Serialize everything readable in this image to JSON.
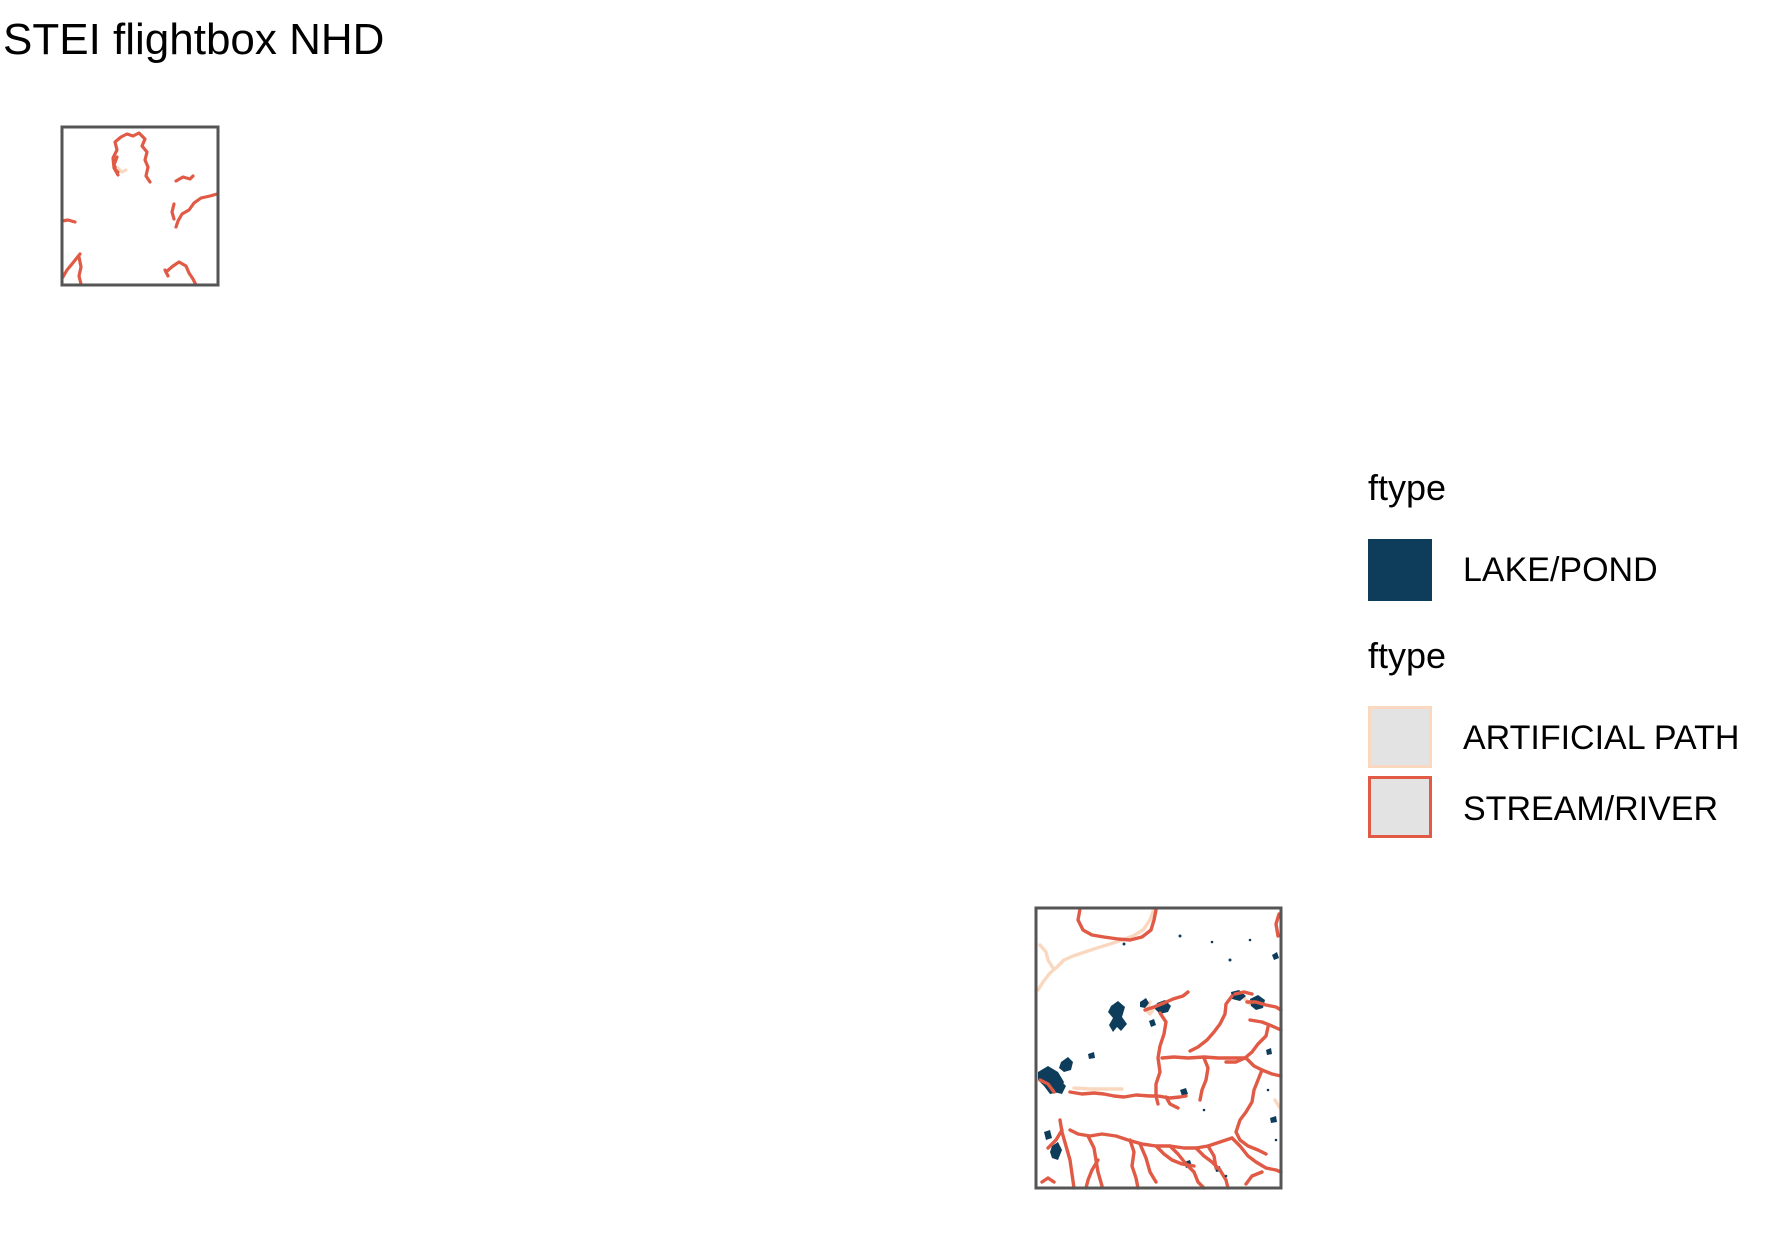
{
  "title": "STEI flightbox NHD",
  "legend": {
    "polygon_title": "ftype",
    "polygon_items": [
      {
        "label": "LAKE/POND",
        "fill": "#0e3d5c"
      }
    ],
    "line_title": "ftype",
    "line_items": [
      {
        "label": "ARTIFICIAL PATH",
        "fill": "#e3e3e3",
        "stroke": "#fad8c0"
      },
      {
        "label": "STREAM/RIVER",
        "fill": "#e3e3e3",
        "stroke": "#e05a45"
      }
    ]
  },
  "colors": {
    "lake_pond": "#0e3d5c",
    "artificial_path": "#fad8c0",
    "stream_river": "#e05a45",
    "frame": "#555555",
    "background": "#ffffff"
  },
  "panels": [
    {
      "name": "flightbox-north-west"
    },
    {
      "name": "flightbox-south-east"
    }
  ]
}
